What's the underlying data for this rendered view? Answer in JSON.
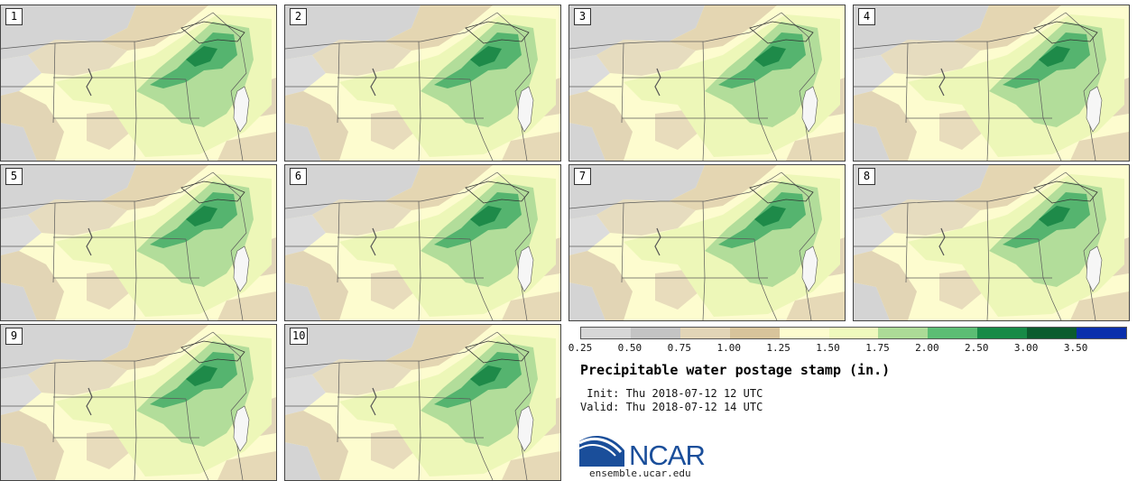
{
  "panels": [
    {
      "label": "1"
    },
    {
      "label": "2"
    },
    {
      "label": "3"
    },
    {
      "label": "4"
    },
    {
      "label": "5"
    },
    {
      "label": "6"
    },
    {
      "label": "7"
    },
    {
      "label": "8"
    },
    {
      "label": "9"
    },
    {
      "label": "10"
    }
  ],
  "legend": {
    "colors": [
      "#d7d7d7",
      "#c4c4c4",
      "#e2d5b7",
      "#d8c49b",
      "#fdfccf",
      "#eff9bd",
      "#acdb97",
      "#5cbd74",
      "#178a47",
      "#0b5c2e",
      "#0a2fac"
    ],
    "ticks": [
      "0.25",
      "0.50",
      "0.75",
      "1.00",
      "1.25",
      "1.50",
      "1.75",
      "2.00",
      "2.50",
      "3.00",
      "3.50"
    ]
  },
  "title": "Precipitable water postage stamp (in.)",
  "init": " Init: Thu 2018-07-12 12 UTC",
  "valid": "Valid: Thu 2018-07-12 14 UTC",
  "logo": {
    "text": "NCAR",
    "url": "ensemble.ucar.edu"
  }
}
